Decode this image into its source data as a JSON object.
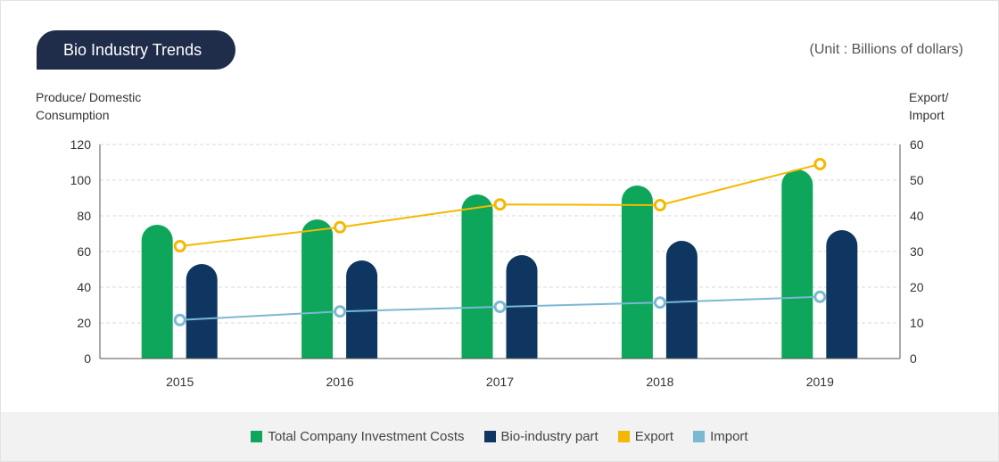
{
  "header": {
    "title": "Bio Industry Trends",
    "unit": "(Unit : Billions of dollars)"
  },
  "axes": {
    "left_title_line1": "Produce/ Domestic",
    "left_title_line2": "Consumption",
    "right_title_line1": "Export/",
    "right_title_line2": "Import"
  },
  "chart_data": {
    "type": "bar",
    "title": "Bio Industry Trends",
    "categories": [
      "2015",
      "2016",
      "2017",
      "2018",
      "2019"
    ],
    "y_left": {
      "label": "Produce/ Domestic Consumption",
      "range": [
        0,
        120
      ],
      "ticks": [
        0,
        20,
        40,
        60,
        80,
        100,
        120
      ]
    },
    "y_right": {
      "label": "Export/ Import",
      "range": [
        0,
        60
      ],
      "ticks": [
        0,
        10,
        20,
        30,
        40,
        50,
        60
      ]
    },
    "grid": true,
    "legend_position": "bottom",
    "bar_series": [
      {
        "name": "Total Company Investment Costs",
        "axis": "left",
        "color": "#0ea65a",
        "values": [
          75,
          78,
          92,
          97,
          106
        ]
      },
      {
        "name": "Bio-industry part",
        "axis": "left",
        "color": "#0e3660",
        "values": [
          53,
          55,
          58,
          66,
          72
        ]
      }
    ],
    "line_series": [
      {
        "name": "Export",
        "axis": "right",
        "color": "#f5b800",
        "values": [
          31.5,
          36.8,
          43.2,
          43.0,
          54.5
        ]
      },
      {
        "name": "Import",
        "axis": "right",
        "color": "#7ab8d4",
        "values": [
          10.8,
          13.2,
          14.5,
          15.7,
          17.3
        ]
      }
    ]
  }
}
